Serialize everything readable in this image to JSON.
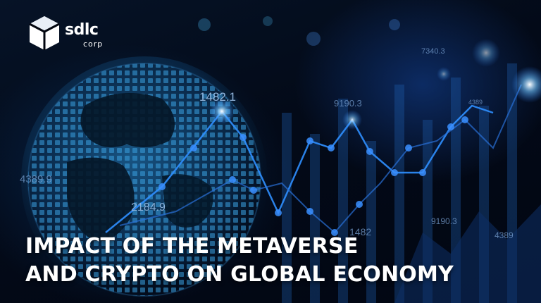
{
  "brand": {
    "name": "sdlc",
    "sub": "corp"
  },
  "figures": [
    "1482.1",
    "9190.3",
    "7340.3",
    "4389",
    "4389.9",
    "2184.9",
    "1482",
    "9190.3",
    "4389"
  ],
  "headline": {
    "line1": "IMPACT OF THE METAVERSE",
    "line2": "AND CRYPTO ON GLOBAL ECONOMY"
  },
  "colors": {
    "text": "#ffffff",
    "glow": "#4aa8ff",
    "line": "#2f7fe0"
  }
}
